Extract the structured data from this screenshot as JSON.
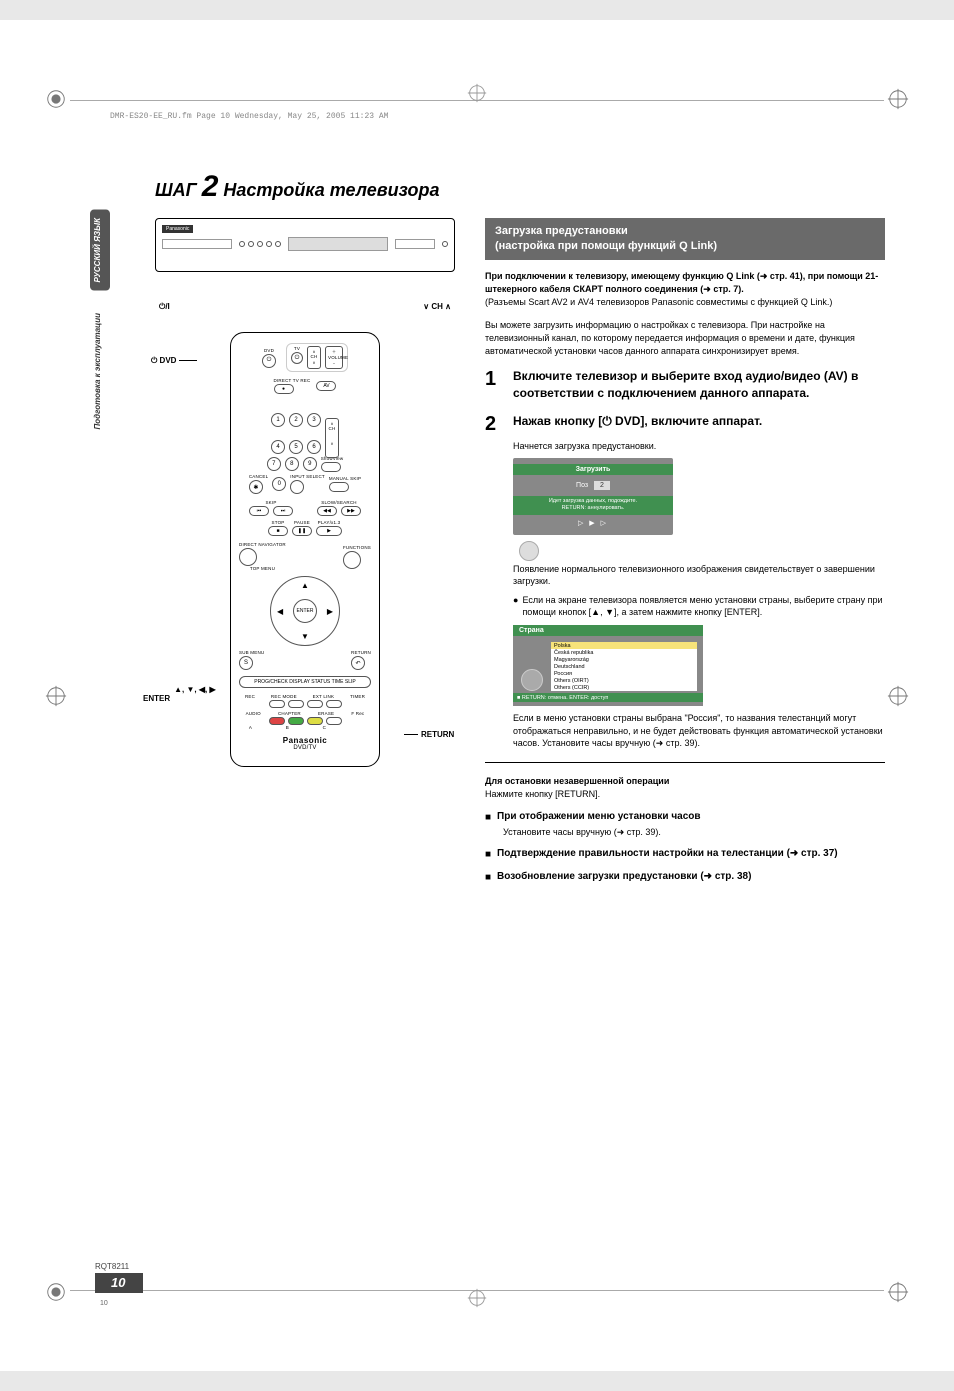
{
  "file_stamp": "DMR-ES20-EE_RU.fm  Page 10  Wednesday, May 25, 2005  11:23 AM",
  "side_tabs": {
    "dark": "РУССКИЙ ЯЗЫК",
    "light": "Подготовка к эксплуатации"
  },
  "step_title": {
    "prefix": "ШАГ",
    "num": "2",
    "rest": "Настройка телевизора"
  },
  "device": {
    "brand": "Panasonic",
    "power_label": "⏻/I",
    "ch_label": "∨ CH ∧"
  },
  "label_left_dvd": "⏻ DVD",
  "label_left_enter": "▲, ▼, ◀, ▶\nENTER",
  "label_right_return": "RETURN",
  "remote": {
    "top_labels": {
      "dvd": "DVD",
      "tv": "TV"
    },
    "direct_tv": "DIRECT TV REC",
    "av": "AV",
    "ch": "CH",
    "volume": "VOLUME",
    "numpad": [
      "1",
      "2",
      "3",
      "4",
      "5",
      "6",
      "7",
      "8",
      "9",
      "✱",
      "0"
    ],
    "showview": "ShowView",
    "cancel": "CANCEL",
    "input": "INPUT SELECT",
    "manual": "MANUAL SKIP",
    "skip": "SKIP",
    "slow": "SLOW/SEARCH",
    "stop": "STOP",
    "pause": "PAUSE",
    "play": "PLAY/x1.3",
    "direct_nav": "DIRECT NAVIGATOR",
    "top_menu": "TOP MENU",
    "functions": "FUNCTIONS",
    "enter": "ENTER",
    "sub_menu": "SUB MENU",
    "return": "RETURN",
    "s": "S",
    "barlabels": "PROG/CHECK   DISPLAY   STATUS   TIME SLIP",
    "row_rec": [
      "REC",
      "REC MODE",
      "EXT LINK",
      "TIMER"
    ],
    "row_audio": [
      "AUDIO",
      "CHAPTER",
      "ERASE",
      "F Rec"
    ],
    "row_letters": [
      "A",
      "B",
      "C"
    ],
    "brand": "Panasonic",
    "model": "DVD/TV"
  },
  "right": {
    "head": "Загрузка предустановки\n(настройка при помощи функций Q Link)",
    "p1_bold": "При подключении к телевизору, имеющему функцию Q Link (➜ стр. 41), при помощи 21-штекерного кабеля СКАРТ полного соединения (➜ стр. 7).",
    "p1_rest": "(Разъемы Scart AV2 и AV4 телевизоров Panasonic совместимы с функцией Q Link.)",
    "p2": "Вы можете загрузить информацию о настройках с телевизора. При настройке на телевизионный канал, по которому передается информация о времени и дате, функция автоматической установки часов данного аппарата синхронизирует время.",
    "step1": "Включите телевизор и выберите вход аудио/видео (AV) в соответствии с подключением данного аппарата.",
    "step2": "Нажав кнопку [⏻ DVD], включите аппарат.",
    "step2_sub": "Начнется загрузка предустановки.",
    "osd1": {
      "head": "Загрузить",
      "pos_label": "Поз",
      "pos_val": "2",
      "foot": "Идет загрузка данных, подождите.\nRETURN: аннулировать.",
      "arrows": "▷ ▶ ▷"
    },
    "p3": "Появление нормального телевизионного изображения свидетельствует о завершении загрузки.",
    "bullet": "Если на экране телевизора появляется меню установки страны, выберите страну при помощи кнопок [▲, ▼], а затем нажмите кнопку [ENTER].",
    "osd2": {
      "head": "Страна",
      "items": [
        "Polska",
        "Česká republika",
        "Magyarország",
        "Deutschland",
        "Россия",
        "Others (OIRT)",
        "Others (CCIR)"
      ],
      "highlight_index": 0,
      "foot": "■   RETURN: отмена.  ENTER: доступ"
    },
    "p4": "Если в меню установки страны выбрана \"Россия\", то названия телестанций могут отображаться неправильно, и не будет действовать функция автоматической установки часов. Установите часы вручную (➜ стр. 39).",
    "stop_bold": "Для остановки незавершенной операции",
    "stop_rest": "Нажмите кнопку [RETURN].",
    "sq1": "При отображении меню установки часов",
    "sq1_sub": "Установите часы вручную (➜ стр. 39).",
    "sq2": "Подтверждение правильности настройки на телестанции (➜ стр. 37)",
    "sq3": "Возобновление загрузки предустановки (➜ стр. 38)"
  },
  "footer_code": "RQT8211",
  "page_number": "10",
  "page_tiny": "10",
  "colors": {
    "page_bg": "#ffffff",
    "body_bg": "#e8e8e8",
    "section_head_bg": "#6a6a6a",
    "osd_bg": "#888888",
    "osd_accent": "#409050",
    "osd_highlight": "#f7e37a",
    "sidebar_dark": "#555555",
    "pagebox": "#444444"
  }
}
